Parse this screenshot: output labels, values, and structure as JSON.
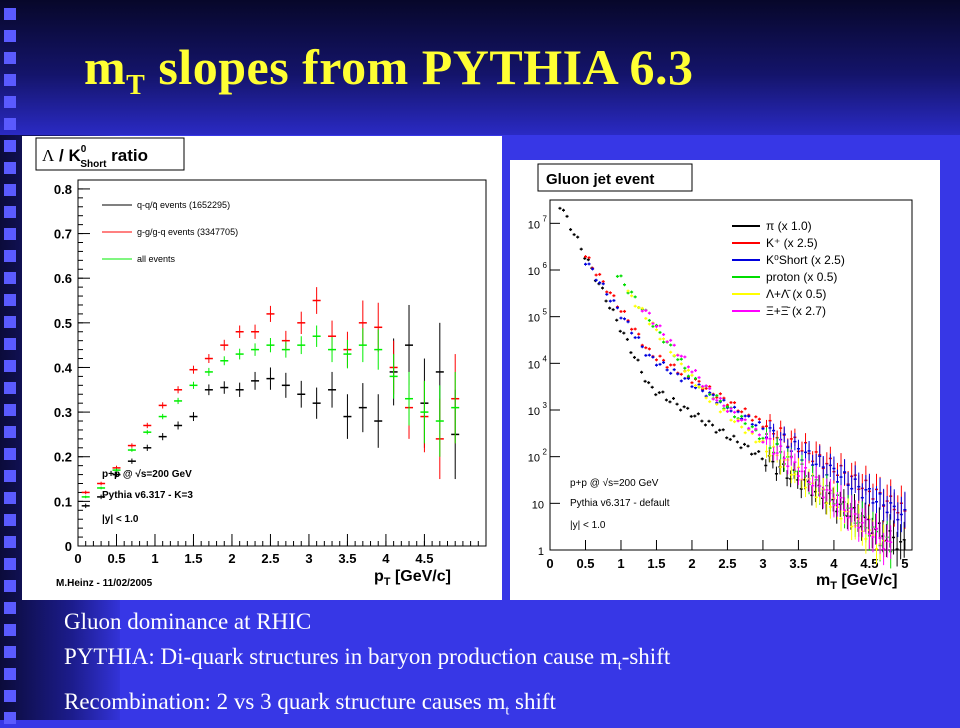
{
  "slide": {
    "title_main": "m",
    "title_sub": "T",
    "title_rest": " slopes from PYTHIA 6.3",
    "bullets": [
      {
        "pre": "Gluon dominance at RHIC",
        "sub": "",
        "post": ""
      },
      {
        "pre": "PYTHIA: Di-quark structures in baryon production cause m",
        "sub": "t",
        "post": "-shift"
      },
      {
        "pre": "Recombination: 2 vs 3 quark structure causes m",
        "sub": "t",
        "post": " shift"
      }
    ]
  },
  "chart_data": [
    {
      "type": "scatter",
      "title": "Λ / K⁰Short ratio",
      "title_symbol": "Λ",
      "title_mid": " / K",
      "title_sup": "0",
      "title_sub": "Short",
      "title_tail": " ratio",
      "xlabel": "p",
      "xlabel_sub": "T",
      "xlabel_unit": " [GeV/c]",
      "xlim": [
        0,
        5.3
      ],
      "ylim": [
        0,
        0.82
      ],
      "xticks": [
        "0",
        "0.5",
        "1",
        "1.5",
        "2",
        "2.5",
        "3",
        "3.5",
        "4",
        "4.5"
      ],
      "yticks": [
        "0",
        "0.1",
        "0.2",
        "0.3",
        "0.4",
        "0.5",
        "0.6",
        "0.7",
        "0.8"
      ],
      "legend": [
        {
          "label": "q-q/q̄ events (1652295)",
          "color": "#000000"
        },
        {
          "label": "g-g/g-q events (3347705)",
          "color": "#ff0000"
        },
        {
          "label": "all events",
          "color": "#00ee00"
        }
      ],
      "annotations": {
        "line1_a": "p+p @ ",
        "line1_b": "√s=200 GeV",
        "line2": "Pythia v6.317 - K=3",
        "line3": "|y| < 1.0",
        "credit": "M.Heinz - 11/02/2005"
      },
      "series": [
        {
          "name": "q-q/q̄ events (1652295)",
          "color": "#000000",
          "x": [
            0.1,
            0.3,
            0.5,
            0.7,
            0.9,
            1.1,
            1.3,
            1.5,
            1.7,
            1.9,
            2.1,
            2.3,
            2.5,
            2.7,
            2.9,
            3.1,
            3.3,
            3.5,
            3.7,
            3.9,
            4.1,
            4.3,
            4.5,
            4.7,
            4.9
          ],
          "y": [
            0.09,
            0.11,
            0.16,
            0.19,
            0.22,
            0.245,
            0.27,
            0.29,
            0.35,
            0.355,
            0.35,
            0.37,
            0.375,
            0.36,
            0.34,
            0.32,
            0.35,
            0.29,
            0.31,
            0.28,
            0.39,
            0.45,
            0.32,
            0.39,
            0.25
          ],
          "err": [
            0.005,
            0.005,
            0.006,
            0.006,
            0.007,
            0.008,
            0.009,
            0.01,
            0.012,
            0.014,
            0.016,
            0.02,
            0.025,
            0.028,
            0.03,
            0.035,
            0.04,
            0.05,
            0.055,
            0.06,
            0.075,
            0.09,
            0.1,
            0.11,
            0.1
          ]
        },
        {
          "name": "g-g/g-q events (3347705)",
          "color": "#ff0000",
          "x": [
            0.1,
            0.3,
            0.5,
            0.7,
            0.9,
            1.1,
            1.3,
            1.5,
            1.7,
            1.9,
            2.1,
            2.3,
            2.5,
            2.7,
            2.9,
            3.1,
            3.3,
            3.5,
            3.7,
            3.9,
            4.1,
            4.3,
            4.5,
            4.7,
            4.9
          ],
          "y": [
            0.12,
            0.14,
            0.175,
            0.225,
            0.27,
            0.315,
            0.35,
            0.395,
            0.42,
            0.45,
            0.48,
            0.48,
            0.52,
            0.46,
            0.5,
            0.55,
            0.47,
            0.44,
            0.5,
            0.49,
            0.4,
            0.31,
            0.29,
            0.24,
            0.33
          ],
          "err": [
            0.004,
            0.004,
            0.005,
            0.005,
            0.006,
            0.007,
            0.008,
            0.009,
            0.01,
            0.012,
            0.014,
            0.016,
            0.018,
            0.022,
            0.025,
            0.03,
            0.035,
            0.04,
            0.05,
            0.055,
            0.06,
            0.07,
            0.08,
            0.09,
            0.1
          ]
        },
        {
          "name": "all events",
          "color": "#00ee00",
          "x": [
            0.1,
            0.3,
            0.5,
            0.7,
            0.9,
            1.1,
            1.3,
            1.5,
            1.7,
            1.9,
            2.1,
            2.3,
            2.5,
            2.7,
            2.9,
            3.1,
            3.3,
            3.5,
            3.7,
            3.9,
            4.1,
            4.3,
            4.5,
            4.7,
            4.9
          ],
          "y": [
            0.11,
            0.13,
            0.17,
            0.215,
            0.255,
            0.29,
            0.325,
            0.36,
            0.39,
            0.415,
            0.43,
            0.44,
            0.45,
            0.44,
            0.45,
            0.47,
            0.44,
            0.43,
            0.45,
            0.44,
            0.38,
            0.33,
            0.3,
            0.28,
            0.31
          ],
          "err": [
            0.003,
            0.003,
            0.004,
            0.004,
            0.005,
            0.006,
            0.007,
            0.008,
            0.009,
            0.01,
            0.012,
            0.014,
            0.016,
            0.018,
            0.02,
            0.024,
            0.028,
            0.032,
            0.038,
            0.045,
            0.05,
            0.06,
            0.07,
            0.08,
            0.08
          ]
        }
      ]
    },
    {
      "type": "scatter",
      "title": "Gluon jet event",
      "xlabel": "m",
      "xlabel_sub": "T",
      "xlabel_unit": " [GeV/c]",
      "xlim": [
        0,
        5.1
      ],
      "ylog": true,
      "ylim_exp": [
        0,
        7.5
      ],
      "xticks": [
        "0",
        "0.5",
        "1",
        "1.5",
        "2",
        "2.5",
        "3",
        "3.5",
        "4",
        "4.5",
        "5"
      ],
      "yticks": [
        {
          "base": "1",
          "exp": ""
        },
        {
          "base": "10",
          "exp": ""
        },
        {
          "base": "10",
          "exp": "2"
        },
        {
          "base": "10",
          "exp": "3"
        },
        {
          "base": "10",
          "exp": "4"
        },
        {
          "base": "10",
          "exp": "5"
        },
        {
          "base": "10",
          "exp": "6"
        },
        {
          "base": "10",
          "exp": "7"
        }
      ],
      "legend": [
        {
          "label": "π   (x 1.0)",
          "color": "#000000"
        },
        {
          "label": "K⁺  (x 2.5)",
          "color": "#ff0000"
        },
        {
          "label": "K⁰Short  (x 2.5)",
          "color": "#0000dd"
        },
        {
          "label": "proton (x 0.5)",
          "color": "#00dd00"
        },
        {
          "label": "Λ+Λ̄  (x 0.5)",
          "color": "#ffff00"
        },
        {
          "label": "Ξ+Ξ̄  (x 2.7)",
          "color": "#ff00ff"
        }
      ],
      "annotations": {
        "line1_a": "p+p @ ",
        "line1_b": "√s=200 GeV",
        "line2": "Pythia v6.317 - default",
        "line3": "|y| < 1.0"
      },
      "curves": [
        {
          "name": "π (x 1.0)",
          "color": "#000000",
          "start": 0.14,
          "a": 7.4,
          "k": 3.1,
          "k2": 0.95,
          "knee": 1.4
        },
        {
          "name": "K+ (x 2.5)",
          "color": "#ff0000",
          "start": 0.5,
          "a": 6.3,
          "k": 2.3,
          "k2": 0.95,
          "knee": 1.4
        },
        {
          "name": "K0Short (x 2.5)",
          "color": "#0000dd",
          "start": 0.5,
          "a": 6.2,
          "k": 2.3,
          "k2": 0.95,
          "knee": 1.4
        },
        {
          "name": "proton (x 0.5)",
          "color": "#00dd00",
          "start": 0.95,
          "a": 5.9,
          "k": 2.1,
          "k2": 1.3,
          "knee": 2.0
        },
        {
          "name": "Λ+Λ̄ (x 0.5)",
          "color": "#ffff00",
          "start": 1.1,
          "a": 5.5,
          "k": 2.0,
          "k2": 1.3,
          "knee": 2.2
        },
        {
          "name": "Ξ+Ξ̄ (x 2.7)",
          "color": "#ff00ff",
          "start": 1.3,
          "a": 5.2,
          "k": 1.9,
          "k2": 1.3,
          "knee": 2.3
        }
      ]
    }
  ]
}
